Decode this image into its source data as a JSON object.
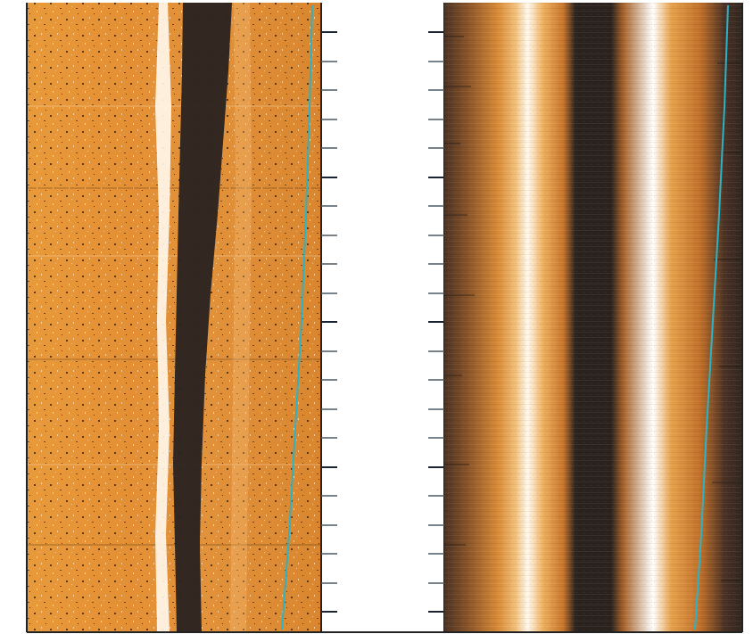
{
  "figure": {
    "panels": [
      {
        "id": "left-scan",
        "background_color": "#e89a3a",
        "speckle_colors": [
          "#3a2614",
          "#fff3dd",
          "#f4b35a",
          "#c7742a"
        ],
        "bright_band_color": "#fff7ea",
        "dark_band_color": "#2c2320",
        "trace_color": "#2bb3c7"
      },
      {
        "id": "right-scan",
        "background_color": "#d98a36",
        "speckle_colors": [
          "#3a2614",
          "#fff3dd"
        ],
        "bright_band_color": "#fff9f0",
        "dark_band_color": "#2a221f",
        "edge_color": "#3a2a1e",
        "trace_color": "#2bb3c7"
      }
    ],
    "scale": {
      "background_color": "#ffffff",
      "tick_color": "#4c5865",
      "major_tick_color": "#1b2430"
    },
    "frame_color": "#222222"
  }
}
